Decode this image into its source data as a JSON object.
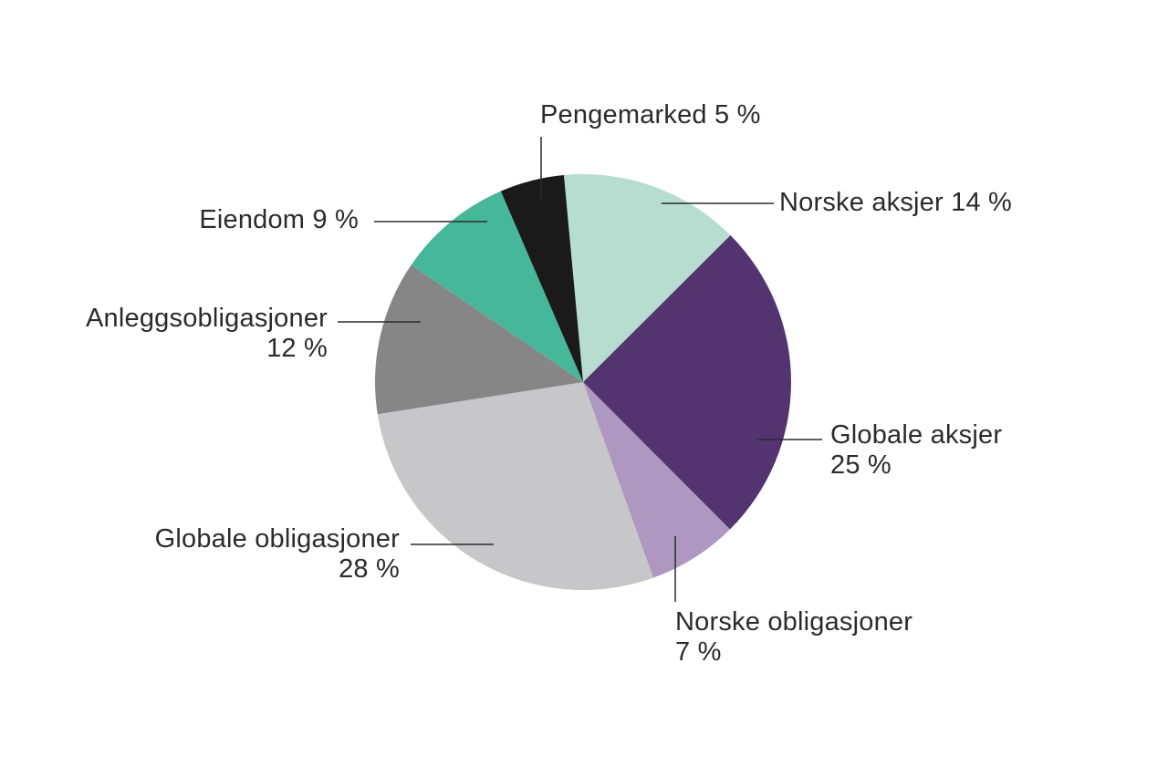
{
  "chart_data": {
    "type": "pie",
    "title": "",
    "direction": "clockwise",
    "start_angle_deg": -5.3,
    "legend": "none",
    "background": "#ffffff",
    "label_color": "#2b2b2b",
    "leader_line_color": "#2b2b2b",
    "slices": [
      {
        "name": "Norske aksjer",
        "value": 14,
        "unit": "%",
        "color": "#b7ddd0",
        "label_lines": [
          "Norske aksjer 14 %"
        ]
      },
      {
        "name": "Globale aksjer",
        "value": 25,
        "unit": "%",
        "color": "#533471",
        "label_lines": [
          "Globale aksjer",
          "25 %"
        ]
      },
      {
        "name": "Norske obligasjoner",
        "value": 7,
        "unit": "%",
        "color": "#ae97c0",
        "label_lines": [
          "Norske obligasjoner",
          "7 %"
        ]
      },
      {
        "name": "Globale obligasjoner",
        "value": 28,
        "unit": "%",
        "color": "#c7c6c8",
        "label_lines": [
          "Globale obligasjoner",
          "28 %"
        ]
      },
      {
        "name": "Anleggsobligasjoner",
        "value": 12,
        "unit": "%",
        "color": "#878687",
        "label_lines": [
          "Anleggsobligasjoner",
          "12 %"
        ]
      },
      {
        "name": "Eiendom",
        "value": 9,
        "unit": "%",
        "color": "#47b799",
        "label_lines": [
          "Eiendom 9 %"
        ]
      },
      {
        "name": "Pengemarked",
        "value": 5,
        "unit": "%",
        "color": "#1a1a1a",
        "label_lines": [
          "Pengemarked 5 %"
        ]
      }
    ]
  }
}
